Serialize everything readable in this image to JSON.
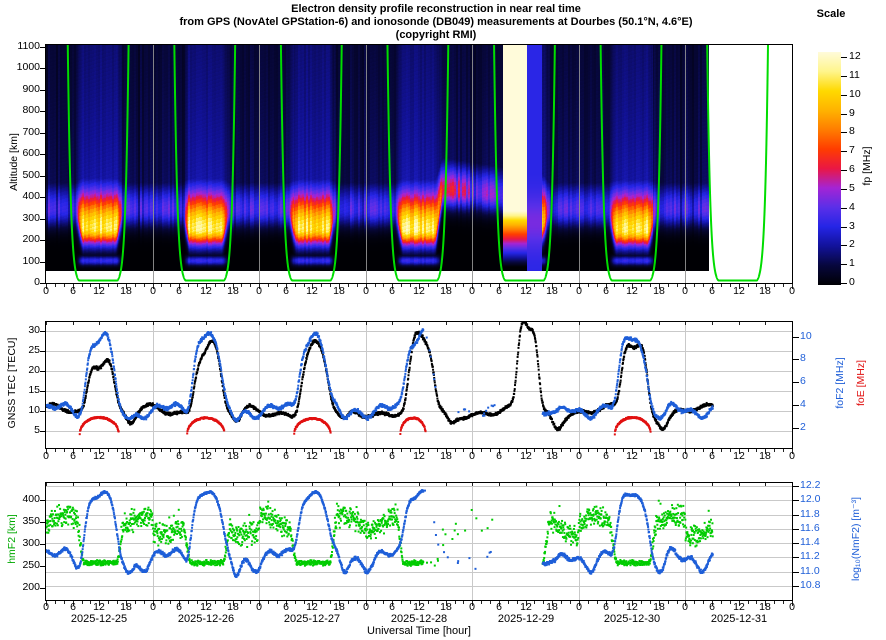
{
  "header": {
    "title_line1": "Electron density profile reconstruction in near real time",
    "title_line2": "from GPS (NovAtel GPStation-6) and ionosonde (DB049) measurements at Dourbes (50.1°N, 4.6°E)",
    "title_line3": "(copyright RMI)",
    "scale_title": "Scale"
  },
  "colorbar": {
    "label": "fp [MHz]",
    "ticks": [
      0,
      1,
      2,
      3,
      4,
      5,
      6,
      7,
      8,
      9,
      10,
      11,
      12
    ]
  },
  "x_axis": {
    "hour_labels": [
      0,
      6,
      12,
      18
    ],
    "minor_step_hours": 2,
    "dates": [
      "2025-12-25",
      "2025-12-26",
      "2025-12-27",
      "2025-12-28",
      "2025-12-29",
      "2025-12-30",
      "2025-12-31"
    ],
    "title": "Universal Time [hour]"
  },
  "panels": {
    "profile": {
      "ylabel": "Altitude [km]",
      "yticks": [
        0,
        100,
        200,
        300,
        400,
        500,
        600,
        700,
        800,
        900,
        1000,
        1100
      ]
    },
    "tec": {
      "ylabel_left": "GNSS TEC [TECU]",
      "yticks_left": [
        5,
        10,
        15,
        20,
        25,
        30
      ],
      "ylabel_right_1": "foF2 [MHz]",
      "ylabel_right_2": "foE [MHz]",
      "yticks_right": [
        2,
        4,
        6,
        8,
        10
      ]
    },
    "peak": {
      "ylabel_left": "hmF2 [km]",
      "yticks_left": [
        200,
        250,
        300,
        350,
        400
      ],
      "ylabel_right": "log₁₀(NmF2) [m⁻³]",
      "yticks_right": [
        10.8,
        11.0,
        11.2,
        11.4,
        11.6,
        11.8,
        12.0,
        12.2
      ]
    }
  },
  "chart_data": [
    {
      "type": "heatmap",
      "name": "electron-density-profile-reconstruction",
      "x_days": 7,
      "ylabel": "Altitude [km]",
      "y_range_km": [
        0,
        1100
      ],
      "value_label": "fp [MHz]",
      "value_range": [
        0,
        12
      ],
      "colormap_stops": [
        [
          0,
          "#000004"
        ],
        [
          1,
          "#07073c"
        ],
        [
          2,
          "#12129a"
        ],
        [
          3,
          "#2525e6"
        ],
        [
          4,
          "#5a2fe8"
        ],
        [
          5,
          "#a424d4"
        ],
        [
          6,
          "#ea1744"
        ],
        [
          7,
          "#ff3c00"
        ],
        [
          8,
          "#ff7d00"
        ],
        [
          9,
          "#ffb300"
        ],
        [
          10,
          "#ffd900"
        ],
        [
          11,
          "#fff58c"
        ],
        [
          12,
          "#fffbda"
        ]
      ],
      "daytime_f2_peak": [
        {
          "date": "2025-12-25",
          "fp_mhz": 10.6,
          "alt_km": 258
        },
        {
          "date": "2025-12-26",
          "fp_mhz": 10.7,
          "alt_km": 255
        },
        {
          "date": "2025-12-27",
          "fp_mhz": 10.3,
          "alt_km": 256
        },
        {
          "date": "2025-12-28",
          "fp_mhz": 10.7,
          "alt_km": 252
        },
        {
          "date": "2025-12-29",
          "fp_mhz": 11.2,
          "alt_km": 272
        },
        {
          "date": "2025-12-30",
          "fp_mhz": 10.6,
          "alt_km": 250
        },
        {
          "date": "2025-12-31",
          "fp_mhz": null,
          "alt_km": null
        }
      ],
      "night_f2": {
        "fp_mhz": 3.6,
        "alt_km": 345
      },
      "raised_night_layer": {
        "start_hour_abs": 85,
        "end_hour_abs": 103,
        "alt_km": 445,
        "fp_mhz": 6.3
      },
      "saturated_column": {
        "start_hour_abs": 102.8,
        "end_hour_abs": 108.2,
        "fp_mhz": 12,
        "top_alt_km": 338
      },
      "smooth_blue_column": {
        "start_hour_abs": 108.2,
        "end_hour_abs": 111.6,
        "fp_mhz": 3.1
      },
      "no_data_after_hour_abs": 149.2,
      "white_below_km": 58,
      "green_curve": {
        "color": "#00dd00",
        "center_hour": 11.75,
        "half_width_hours": 6.9,
        "power": 10,
        "scale_km": 1200
      }
    },
    {
      "type": "scatter",
      "name": "tec-fof2-foe",
      "series": [
        {
          "name": "GNSS TEC",
          "color": "#000000",
          "axis": "left",
          "night_level_tecu": 9.8,
          "evening_min_tecu": 7,
          "day_peaks_tecu": [
            23.5,
            26.5,
            25.5,
            27.5,
            31.5,
            27,
            null
          ],
          "peak_width_h": [
            3.3,
            3.3,
            3.3,
            3.1,
            2.6,
            3.2,
            3.2
          ],
          "end_hour_abs": 150.2
        },
        {
          "name": "foF2",
          "color": "#1f5fd8",
          "axis": "right",
          "night_level_mhz": 3.55,
          "evening_min_mhz": 2.8,
          "day_peaks_mhz": [
            9.9,
            10.25,
            10.1,
            10.35,
            null,
            10.0,
            null
          ],
          "sparse_window_abs": [
            85,
            101.2
          ],
          "gap_window_abs": [
            101.2,
            111.8
          ],
          "end_hour_abs": 150.2
        },
        {
          "name": "foE",
          "color": "#e11212",
          "axis": "right",
          "base_mhz": 1.45,
          "arcs": [
            {
              "day": 0,
              "start_h": 7.6,
              "end_h": 16.4,
              "peak_mhz": 2.9
            },
            {
              "day": 1,
              "start_h": 7.8,
              "end_h": 16.2,
              "peak_mhz": 2.85
            },
            {
              "day": 2,
              "start_h": 7.9,
              "end_h": 16.1,
              "peak_mhz": 2.8
            },
            {
              "day": 3,
              "start_h": 7.8,
              "end_h": 13.5,
              "peak_mhz": 2.85
            },
            {
              "day": 5,
              "start_h": 8.1,
              "end_h": 16.2,
              "peak_mhz": 2.9
            }
          ]
        }
      ]
    },
    {
      "type": "scatter",
      "name": "hmf2-nmf2",
      "series": [
        {
          "name": "hmF2",
          "color": "#00cc00",
          "axis": "left",
          "night_mean_km": 342,
          "night_scatter_km": 28,
          "day_mean_km": 257,
          "day_scatter_km": 7
        },
        {
          "name": "log10(NmF2)",
          "color": "#1f5fd8",
          "axis": "right",
          "relation": "10.093 + 2*log10(foF2)",
          "day_plateau": 12.1,
          "night_level": 11.2,
          "evening_min": 10.95
        }
      ],
      "ionosonde_sparse_window_abs": [
        85,
        101.2
      ],
      "ionosonde_gap_window_abs": [
        101.2,
        111.8
      ],
      "end_hour_abs": 150.2
    }
  ]
}
